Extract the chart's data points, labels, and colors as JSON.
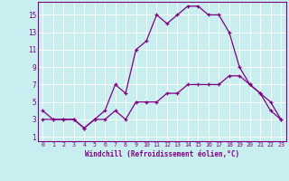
{
  "xlabel": "Windchill (Refroidissement éolien,°C)",
  "bg_color": "#c8eef0",
  "line_color": "#800080",
  "grid_color": "#ffffff",
  "xlim": [
    -0.5,
    23.5
  ],
  "ylim": [
    0.5,
    16.5
  ],
  "xticks": [
    0,
    1,
    2,
    3,
    4,
    5,
    6,
    7,
    8,
    9,
    10,
    11,
    12,
    13,
    14,
    15,
    16,
    17,
    18,
    19,
    20,
    21,
    22,
    23
  ],
  "yticks": [
    1,
    3,
    5,
    7,
    9,
    11,
    13,
    15
  ],
  "hours": [
    0,
    1,
    2,
    3,
    4,
    5,
    6,
    7,
    8,
    9,
    10,
    11,
    12,
    13,
    14,
    15,
    16,
    17,
    18,
    19,
    20,
    21,
    22,
    23
  ],
  "temp_line": [
    4,
    3,
    3,
    3,
    2,
    3,
    4,
    7,
    6,
    11,
    12,
    15,
    14,
    15,
    16,
    16,
    15,
    15,
    13,
    9,
    7,
    6,
    4,
    3
  ],
  "windchill_line": [
    3,
    3,
    3,
    3,
    2,
    3,
    3,
    4,
    3,
    5,
    5,
    5,
    6,
    6,
    7,
    7,
    7,
    7,
    8,
    8,
    7,
    6,
    5,
    3
  ]
}
